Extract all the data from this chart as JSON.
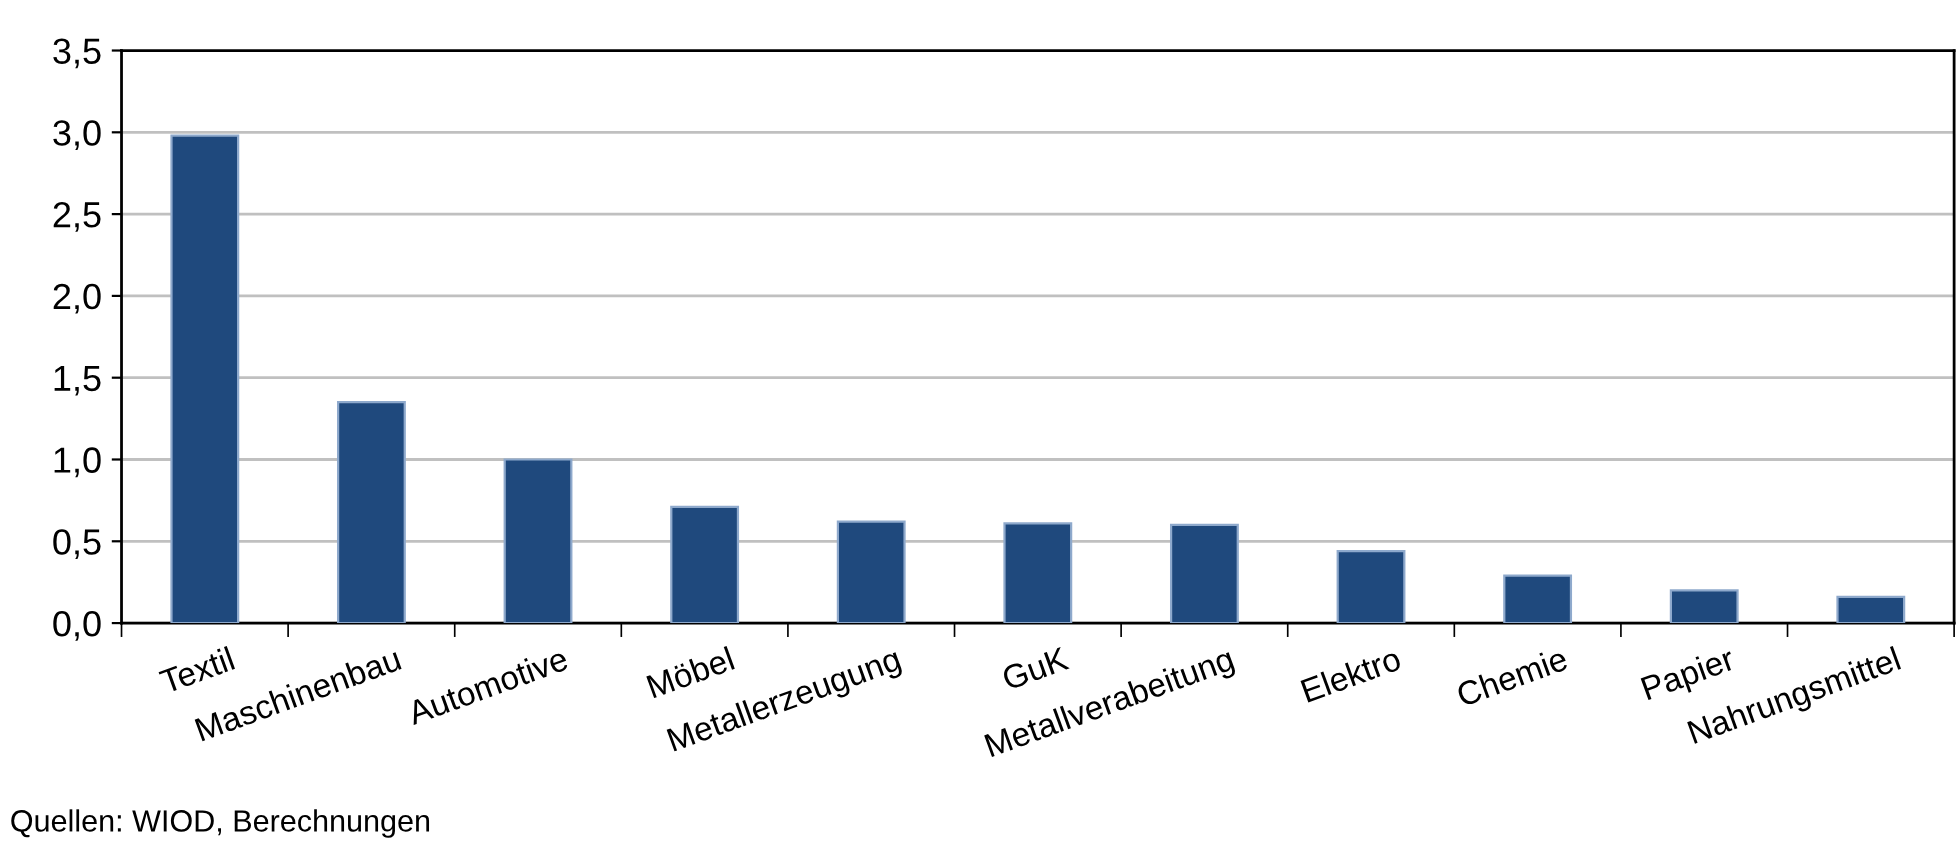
{
  "chart_data": {
    "type": "bar",
    "categories": [
      "Textil",
      "Maschinenbau",
      "Automotive",
      "Möbel",
      "Metallerzeugung",
      "GuK",
      "Metallverabeitung",
      "Elektro",
      "Chemie",
      "Papier",
      "Nahrungsmittel"
    ],
    "values": [
      2.98,
      1.35,
      1.0,
      0.71,
      0.62,
      0.61,
      0.6,
      0.44,
      0.29,
      0.2,
      0.16
    ],
    "color": "#1f497d",
    "ylim": [
      0,
      3.5
    ],
    "yticks": [
      {
        "value": 0,
        "label": "0,0"
      },
      {
        "value": 0.5,
        "label": "0,5"
      },
      {
        "value": 1.0,
        "label": "1,0"
      },
      {
        "value": 1.5,
        "label": "1,5"
      },
      {
        "value": 2.0,
        "label": "2,0"
      },
      {
        "value": 2.5,
        "label": "2,5"
      },
      {
        "value": 3.0,
        "label": "3,0"
      },
      {
        "value": 3.5,
        "label": "3,5"
      }
    ],
    "grid": "y",
    "annotations": [
      "Quellen: WIOD, Berechnungen"
    ]
  }
}
